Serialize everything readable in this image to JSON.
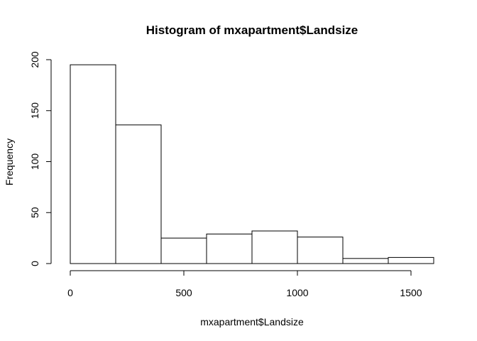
{
  "chart_data": {
    "type": "bar",
    "title": "Histogram of mxapartment$Landsize",
    "xlabel": "mxapartment$Landsize",
    "ylabel": "Frequency",
    "bins": [
      {
        "from": 0,
        "to": 200,
        "count": 195
      },
      {
        "from": 200,
        "to": 400,
        "count": 136
      },
      {
        "from": 400,
        "to": 600,
        "count": 25
      },
      {
        "from": 600,
        "to": 800,
        "count": 29
      },
      {
        "from": 800,
        "to": 1000,
        "count": 32
      },
      {
        "from": 1000,
        "to": 1200,
        "count": 26
      },
      {
        "from": 1200,
        "to": 1400,
        "count": 5
      },
      {
        "from": 1400,
        "to": 1600,
        "count": 6
      }
    ],
    "xticks": [
      0,
      500,
      1000,
      1500
    ],
    "yticks": [
      0,
      50,
      100,
      150,
      200
    ],
    "xlim": [
      0,
      1600
    ],
    "ylim": [
      0,
      200
    ],
    "grid": false
  }
}
